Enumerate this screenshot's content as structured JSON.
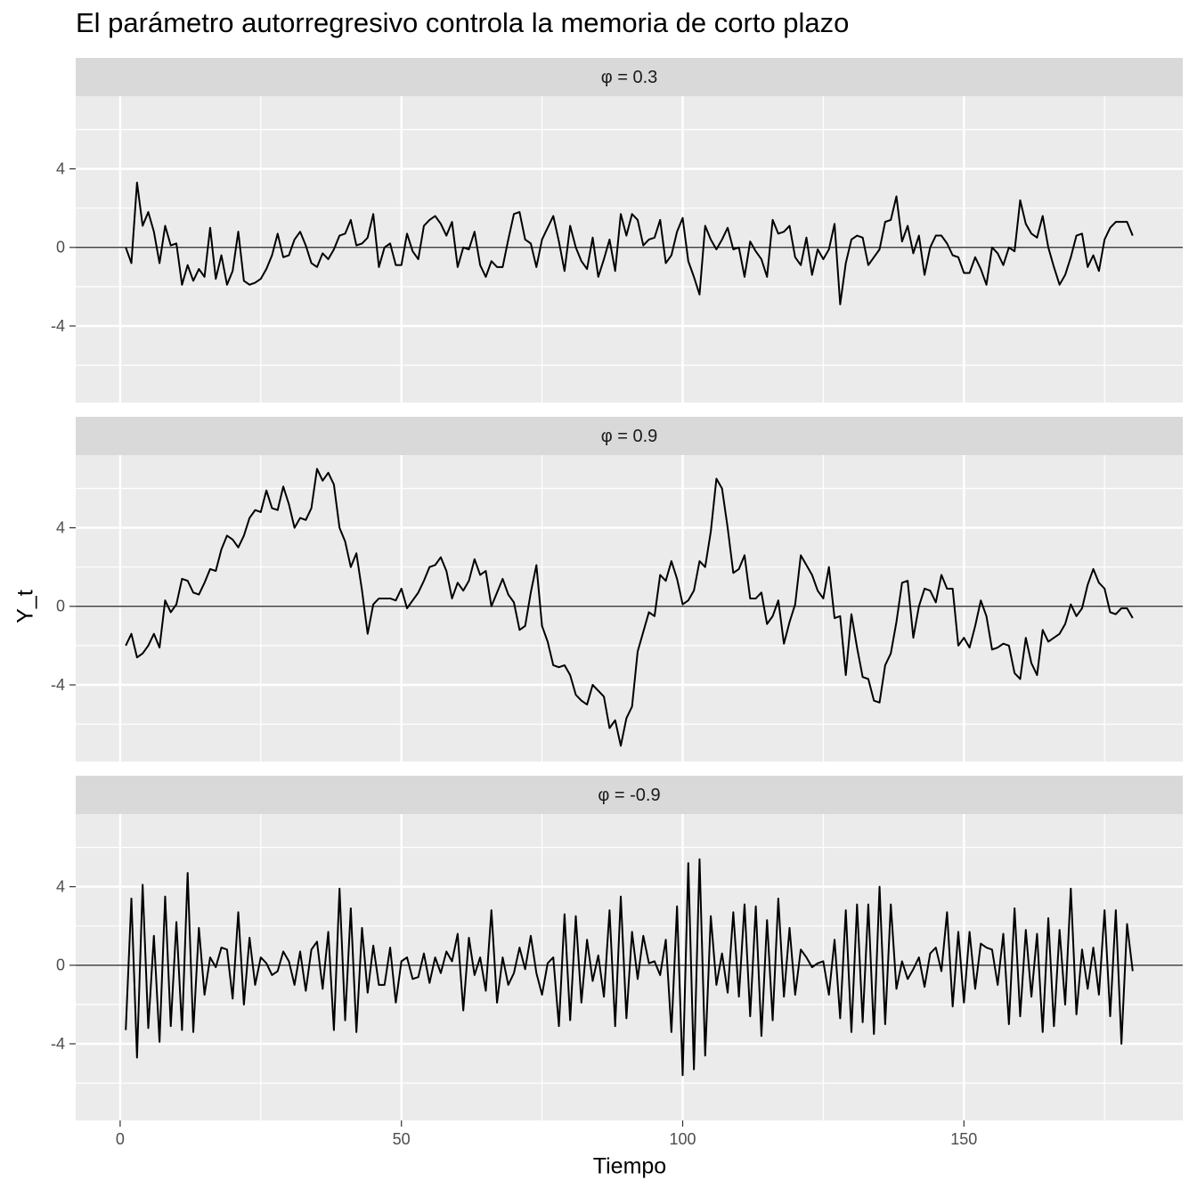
{
  "chart_data": {
    "type": "line",
    "title": "El parámetro autorregresivo controla la memoria de corto plazo",
    "x_label": "Tiempo",
    "y_label": "Y_t",
    "x": [
      1,
      2,
      3,
      4,
      5,
      6,
      7,
      8,
      9,
      10,
      11,
      12,
      13,
      14,
      15,
      16,
      17,
      18,
      19,
      20,
      21,
      22,
      23,
      24,
      25,
      26,
      27,
      28,
      29,
      30,
      31,
      32,
      33,
      34,
      35,
      36,
      37,
      38,
      39,
      40,
      41,
      42,
      43,
      44,
      45,
      46,
      47,
      48,
      49,
      50,
      51,
      52,
      53,
      54,
      55,
      56,
      57,
      58,
      59,
      60,
      61,
      62,
      63,
      64,
      65,
      66,
      67,
      68,
      69,
      70,
      71,
      72,
      73,
      74,
      75,
      76,
      77,
      78,
      79,
      80,
      81,
      82,
      83,
      84,
      85,
      86,
      87,
      88,
      89,
      90,
      91,
      92,
      93,
      94,
      95,
      96,
      97,
      98,
      99,
      100,
      101,
      102,
      103,
      104,
      105,
      106,
      107,
      108,
      109,
      110,
      111,
      112,
      113,
      114,
      115,
      116,
      117,
      118,
      119,
      120,
      121,
      122,
      123,
      124,
      125,
      126,
      127,
      128,
      129,
      130,
      131,
      132,
      133,
      134,
      135,
      136,
      137,
      138,
      139,
      140,
      141,
      142,
      143,
      144,
      145,
      146,
      147,
      148,
      149,
      150,
      151,
      152,
      153,
      154,
      155,
      156,
      157,
      158,
      159,
      160,
      161,
      162,
      163,
      164,
      165,
      166,
      167,
      168,
      169,
      170,
      171,
      172,
      173,
      174,
      175,
      176,
      177,
      178,
      179,
      180
    ],
    "facets": [
      {
        "label": "φ = 0.3",
        "color": "#000000",
        "values": [
          0,
          -0.8,
          3.3,
          1.1,
          1.8,
          0.8,
          -0.8,
          1.1,
          0.1,
          0.2,
          -1.9,
          -0.9,
          -1.7,
          -1.1,
          -1.5,
          1.0,
          -1.6,
          -0.4,
          -1.9,
          -1.2,
          0.8,
          -1.7,
          -1.9,
          -1.8,
          -1.6,
          -1.1,
          -0.4,
          0.7,
          -0.5,
          -0.4,
          0.4,
          0.8,
          0.1,
          -0.8,
          -1.0,
          -0.3,
          -0.6,
          -0.1,
          0.6,
          0.7,
          1.4,
          0.1,
          0.2,
          0.5,
          1.7,
          -1.0,
          0.0,
          0.2,
          -0.9,
          -0.9,
          0.7,
          -0.2,
          -0.6,
          1.1,
          1.4,
          1.6,
          1.2,
          0.6,
          1.3,
          -1.0,
          0.0,
          -0.1,
          0.8,
          -0.9,
          -1.5,
          -0.7,
          -1.0,
          -1.0,
          0.4,
          1.7,
          1.8,
          0.4,
          0.2,
          -1.0,
          0.4,
          1.0,
          1.6,
          0.3,
          -1.2,
          1.1,
          0.0,
          -0.7,
          -1.1,
          0.5,
          -1.5,
          -0.6,
          0.4,
          -1.2,
          1.7,
          0.6,
          1.7,
          1.4,
          0.1,
          0.4,
          0.5,
          1.4,
          -0.8,
          -0.4,
          0.8,
          1.5,
          -0.7,
          -1.5,
          -2.4,
          1.1,
          0.4,
          -0.1,
          0.4,
          1.0,
          -0.1,
          0.0,
          -1.5,
          0.3,
          -0.2,
          -0.6,
          -1.5,
          1.4,
          0.7,
          0.8,
          1.1,
          -0.5,
          -0.9,
          0.5,
          -1.4,
          -0.1,
          -0.6,
          -0.1,
          1.2,
          -2.9,
          -0.8,
          0.4,
          0.6,
          0.5,
          -0.9,
          -0.5,
          -0.1,
          1.3,
          1.4,
          2.6,
          0.3,
          1.1,
          -0.3,
          0.6,
          -1.4,
          0.0,
          0.6,
          0.6,
          0.2,
          -0.4,
          -0.5,
          -1.3,
          -1.3,
          -0.5,
          -1.1,
          -1.9,
          0.0,
          -0.3,
          -0.9,
          0.0,
          -0.2,
          2.4,
          1.2,
          0.7,
          0.5,
          1.6,
          0.0,
          -1.0,
          -1.9,
          -1.4,
          -0.5,
          0.6,
          0.7,
          -1.0,
          -0.4,
          -1.2,
          0.4,
          1.0,
          1.3,
          1.3,
          1.3,
          0.6
        ]
      },
      {
        "label": "φ = 0.9",
        "color": "#000000",
        "values": [
          -2.0,
          -1.4,
          -2.6,
          -2.4,
          -2.0,
          -1.4,
          -2.1,
          0.3,
          -0.3,
          0.1,
          1.4,
          1.3,
          0.7,
          0.6,
          1.2,
          1.9,
          1.8,
          2.9,
          3.6,
          3.4,
          3.0,
          3.6,
          4.5,
          4.9,
          4.8,
          5.9,
          5.0,
          4.9,
          6.1,
          5.2,
          4.0,
          4.5,
          4.4,
          5.0,
          7.0,
          6.4,
          6.8,
          6.2,
          4.0,
          3.3,
          2.0,
          2.7,
          0.8,
          -1.4,
          0.1,
          0.4,
          0.4,
          0.4,
          0.3,
          0.9,
          -0.1,
          0.3,
          0.7,
          1.3,
          2.0,
          2.1,
          2.5,
          1.8,
          0.4,
          1.2,
          0.8,
          1.3,
          2.4,
          1.6,
          1.8,
          0.0,
          0.7,
          1.4,
          0.6,
          0.2,
          -1.2,
          -1.0,
          0.7,
          2.1,
          -1.0,
          -1.8,
          -3.0,
          -3.1,
          -3.0,
          -3.5,
          -4.5,
          -4.8,
          -5.0,
          -4.0,
          -4.3,
          -4.6,
          -6.2,
          -5.8,
          -7.1,
          -5.7,
          -5.1,
          -2.3,
          -1.3,
          -0.3,
          -0.5,
          1.6,
          1.3,
          2.3,
          1.4,
          0.1,
          0.3,
          0.8,
          2.3,
          2.0,
          3.8,
          6.5,
          6.0,
          4.0,
          1.7,
          1.9,
          2.6,
          0.4,
          0.4,
          0.7,
          -0.9,
          -0.5,
          0.3,
          -1.9,
          -0.8,
          0.1,
          2.6,
          2.1,
          1.6,
          0.8,
          0.4,
          2.0,
          -0.6,
          -0.5,
          -3.5,
          -0.4,
          -2.1,
          -3.6,
          -3.7,
          -4.8,
          -4.9,
          -3.0,
          -2.4,
          -0.8,
          1.2,
          1.3,
          -1.6,
          0.0,
          0.9,
          0.8,
          0.2,
          1.6,
          0.9,
          0.9,
          -2.0,
          -1.6,
          -2.1,
          -1.0,
          0.3,
          -0.5,
          -2.2,
          -2.1,
          -1.9,
          -2.0,
          -3.4,
          -3.7,
          -1.6,
          -2.9,
          -3.5,
          -1.2,
          -1.8,
          -1.6,
          -1.4,
          -0.9,
          0.1,
          -0.5,
          -0.1,
          1.1,
          1.9,
          1.2,
          0.9,
          -0.3,
          -0.4,
          -0.1,
          -0.1,
          -0.6
        ]
      },
      {
        "label": "φ = -0.9",
        "color": "#000000",
        "values": [
          -3.3,
          3.4,
          -4.7,
          4.1,
          -3.2,
          1.5,
          -3.9,
          3.5,
          -3.1,
          2.2,
          -3.3,
          4.7,
          -3.4,
          1.9,
          -1.5,
          0.4,
          -0.1,
          0.9,
          0.8,
          -1.7,
          2.7,
          -2.0,
          1.4,
          -1.0,
          0.4,
          0.1,
          -0.5,
          -0.3,
          0.7,
          0.2,
          -1.0,
          0.7,
          -1.3,
          0.8,
          1.2,
          -1.2,
          1.7,
          -3.3,
          3.9,
          -2.8,
          2.9,
          -3.4,
          1.9,
          -1.4,
          1.0,
          -1.0,
          -1.0,
          0.9,
          -1.9,
          0.2,
          0.4,
          -0.7,
          -0.6,
          0.6,
          -0.9,
          0.4,
          -0.4,
          0.7,
          0.2,
          1.6,
          -2.3,
          1.4,
          -0.5,
          0.4,
          -1.3,
          2.8,
          -1.9,
          0.4,
          -1.0,
          -0.4,
          0.9,
          -0.2,
          1.5,
          -0.4,
          -1.5,
          0.1,
          0.4,
          -3.1,
          2.6,
          -2.8,
          2.5,
          -1.9,
          1.3,
          -0.8,
          0.5,
          -1.6,
          2.8,
          -3.1,
          3.5,
          -2.7,
          1.7,
          -0.7,
          1.5,
          0.1,
          0.2,
          -0.5,
          1.3,
          -3.4,
          3.0,
          -5.6,
          5.2,
          -5.3,
          5.4,
          -4.6,
          2.5,
          -1.0,
          0.6,
          -1.4,
          2.7,
          -1.6,
          3.1,
          -2.6,
          3.0,
          -3.6,
          2.3,
          -2.8,
          3.4,
          -1.6,
          1.9,
          -1.5,
          0.8,
          0.4,
          -0.1,
          0.1,
          0.2,
          -1.5,
          1.3,
          -2.7,
          2.8,
          -3.4,
          3.1,
          -2.9,
          3.1,
          -3.5,
          4.0,
          -3.0,
          3.1,
          -1.2,
          0.2,
          -0.7,
          -0.2,
          0.4,
          -1.1,
          0.6,
          0.9,
          -0.3,
          2.7,
          -2.1,
          1.7,
          -1.9,
          1.7,
          -1.2,
          1.1,
          0.9,
          0.8,
          -1.0,
          1.6,
          -3.0,
          2.9,
          -2.6,
          1.8,
          -1.6,
          1.6,
          -3.4,
          2.4,
          -3.1,
          1.8,
          -2.0,
          3.9,
          -2.5,
          0.8,
          -1.2,
          0.9,
          -1.5,
          2.8,
          -2.6,
          2.8,
          -4.0,
          2.1,
          -0.3
        ]
      }
    ],
    "xlim": [
      -7.9,
      188.9
    ],
    "xticks": [
      0,
      50,
      100,
      150
    ],
    "xminor": [
      25,
      75,
      125,
      175
    ],
    "ylim": [
      -7.9,
      7.7
    ],
    "yticks": [
      -4,
      0,
      4
    ],
    "yminor": [
      -6,
      -2,
      2,
      6
    ],
    "hline": 0,
    "grid": true
  }
}
